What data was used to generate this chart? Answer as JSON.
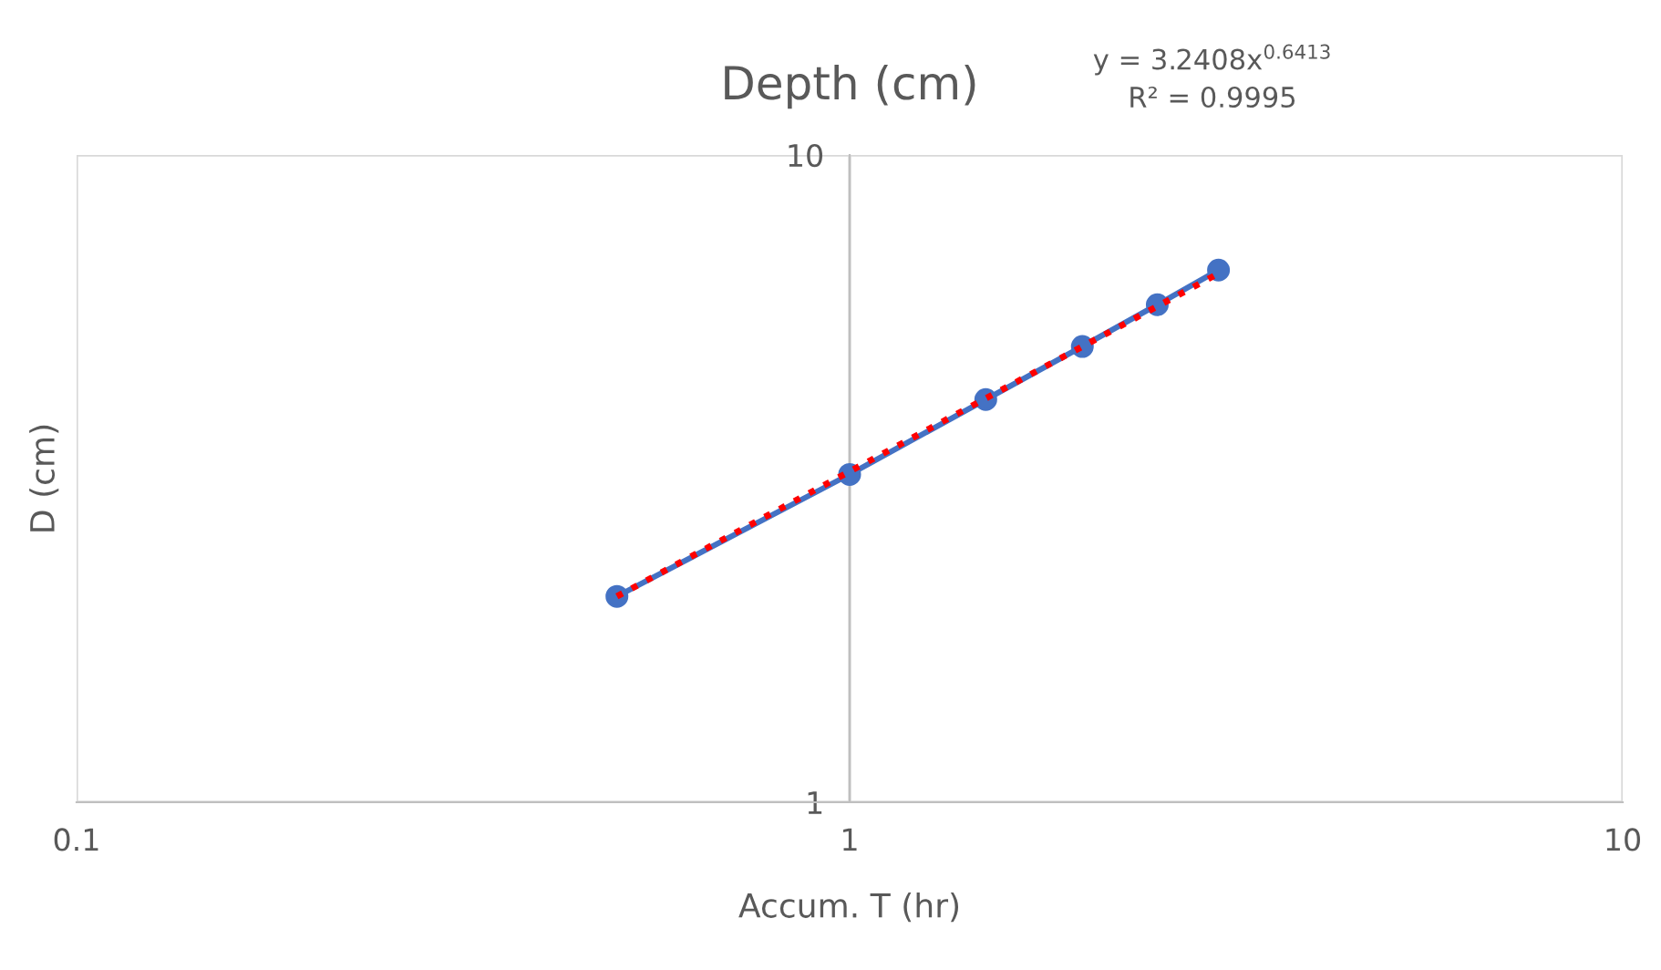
{
  "chart_data": {
    "type": "line",
    "title": "Depth (cm)",
    "xlabel": "Accum. T (hr)",
    "ylabel": "D (cm)",
    "annotations": [
      "y = 3.2408x$^{0.6413}$\nR² = 0.9995"
    ],
    "log": "xy",
    "xlim": [
      0.1,
      10
    ],
    "ylim": [
      1,
      10
    ],
    "xticks": [
      0.1,
      1,
      10
    ],
    "yticks": [
      1,
      10
    ],
    "grid": true,
    "legend": false,
    "series": [
      {
        "x": [
          0.5,
          1,
          1.5,
          2,
          2.5,
          3
        ],
        "values": [
          2.08,
          3.21,
          4.19,
          5.06,
          5.87,
          6.64
        ],
        "color": "#4472c4",
        "marker": "circle",
        "line_style": "solid"
      },
      {
        "x": [
          0.5,
          3
        ],
        "values": [
          2.08,
          6.56
        ],
        "color": "#ff0000",
        "marker": "none",
        "line_style": "dotted"
      }
    ]
  }
}
